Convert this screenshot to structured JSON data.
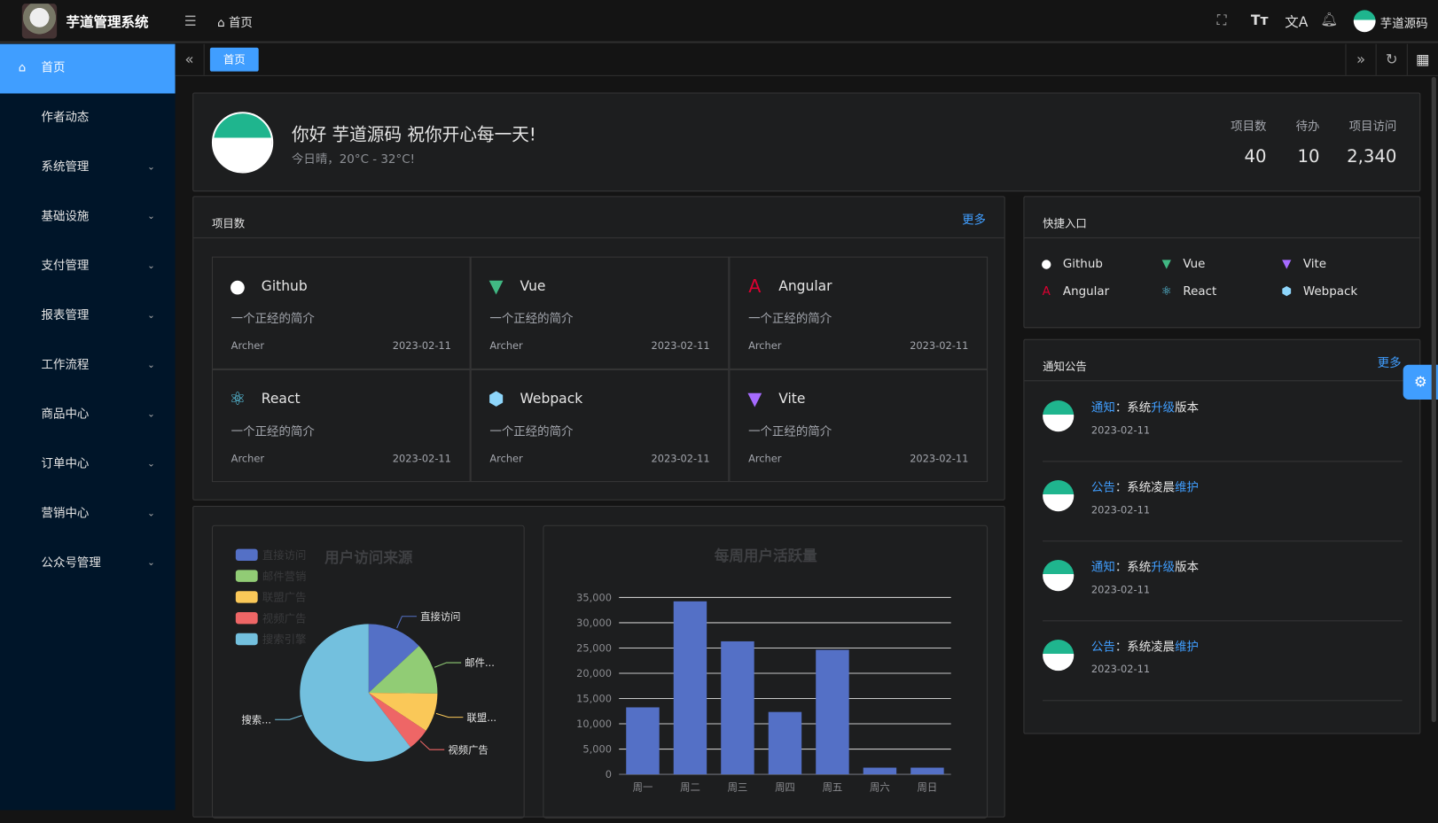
{
  "header": {
    "app_title": "芋道管理系统",
    "breadcrumb": "首页",
    "user_name": "芋道源码"
  },
  "sidebar": {
    "items": [
      {
        "label": "首页"
      },
      {
        "label": "作者动态"
      },
      {
        "label": "系统管理"
      },
      {
        "label": "基础设施"
      },
      {
        "label": "支付管理"
      },
      {
        "label": "报表管理"
      },
      {
        "label": "工作流程"
      },
      {
        "label": "商品中心"
      },
      {
        "label": "订单中心"
      },
      {
        "label": "营销中心"
      },
      {
        "label": "公众号管理"
      }
    ]
  },
  "tabs": [
    {
      "label": "首页",
      "active": true
    }
  ],
  "welcome": {
    "greeting": "你好 芋道源码 祝你开心每一天!",
    "weather": "今日晴，20°C - 32°C!",
    "stats": [
      {
        "label": "项目数",
        "value": "40"
      },
      {
        "label": "待办",
        "value": "10"
      },
      {
        "label": "项目访问",
        "value": "2,340"
      }
    ]
  },
  "projects": {
    "title": "项目数",
    "more": "更多",
    "items": [
      {
        "name": "Github",
        "desc": "一个正经的简介",
        "author": "Archer",
        "date": "2023-02-11",
        "icon": "github-icon"
      },
      {
        "name": "Vue",
        "desc": "一个正经的简介",
        "author": "Archer",
        "date": "2023-02-11",
        "icon": "vue-icon"
      },
      {
        "name": "Angular",
        "desc": "一个正经的简介",
        "author": "Archer",
        "date": "2023-02-11",
        "icon": "angular-icon"
      },
      {
        "name": "React",
        "desc": "一个正经的简介",
        "author": "Archer",
        "date": "2023-02-11",
        "icon": "react-icon"
      },
      {
        "name": "Webpack",
        "desc": "一个正经的简介",
        "author": "Archer",
        "date": "2023-02-11",
        "icon": "webpack-icon"
      },
      {
        "name": "Vite",
        "desc": "一个正经的简介",
        "author": "Archer",
        "date": "2023-02-11",
        "icon": "vite-icon"
      }
    ]
  },
  "shortcuts": {
    "title": "快捷入口",
    "items": [
      {
        "name": "Github"
      },
      {
        "name": "Vue"
      },
      {
        "name": "Vite"
      },
      {
        "name": "Angular"
      },
      {
        "name": "React"
      },
      {
        "name": "Webpack"
      }
    ]
  },
  "notices": {
    "title": "通知公告",
    "more": "更多",
    "items": [
      {
        "type": "通知",
        "sep": "：",
        "pre": "系统",
        "hl": "升级",
        "post": "版本",
        "date": "2023-02-11"
      },
      {
        "type": "公告",
        "sep": "：",
        "pre": "系统凌晨",
        "hl": "维护",
        "post": "",
        "date": "2023-02-11"
      },
      {
        "type": "通知",
        "sep": "：",
        "pre": "系统",
        "hl": "升级",
        "post": "版本",
        "date": "2023-02-11"
      },
      {
        "type": "公告",
        "sep": "：",
        "pre": "系统凌晨",
        "hl": "维护",
        "post": "",
        "date": "2023-02-11"
      }
    ]
  },
  "chart_data": [
    {
      "type": "pie",
      "title": "用户访问来源",
      "legend_position": "top-left",
      "categories": [
        "直接访问",
        "邮件营销",
        "联盟广告",
        "视频广告",
        "搜索引擎"
      ],
      "values": [
        335,
        310,
        234,
        135,
        1548
      ],
      "slice_labels": [
        "直接访问",
        "邮件...",
        "联盟...",
        "视频广告",
        "搜索..."
      ],
      "colors": [
        "#5470c6",
        "#91cc75",
        "#fac858",
        "#ee6666",
        "#73c0de"
      ]
    },
    {
      "type": "bar",
      "title": "每周用户活跃量",
      "categories": [
        "周一",
        "周二",
        "周三",
        "周四",
        "周五",
        "周六",
        "周日"
      ],
      "values": [
        13253,
        34235,
        26321,
        12340,
        24643,
        1322,
        1324
      ],
      "ylim": [
        0,
        35000
      ],
      "yticks": [
        "0",
        "5,000",
        "10,000",
        "15,000",
        "20,000",
        "25,000",
        "30,000",
        "35,000"
      ],
      "grid": true,
      "color": "#5470c6"
    }
  ]
}
